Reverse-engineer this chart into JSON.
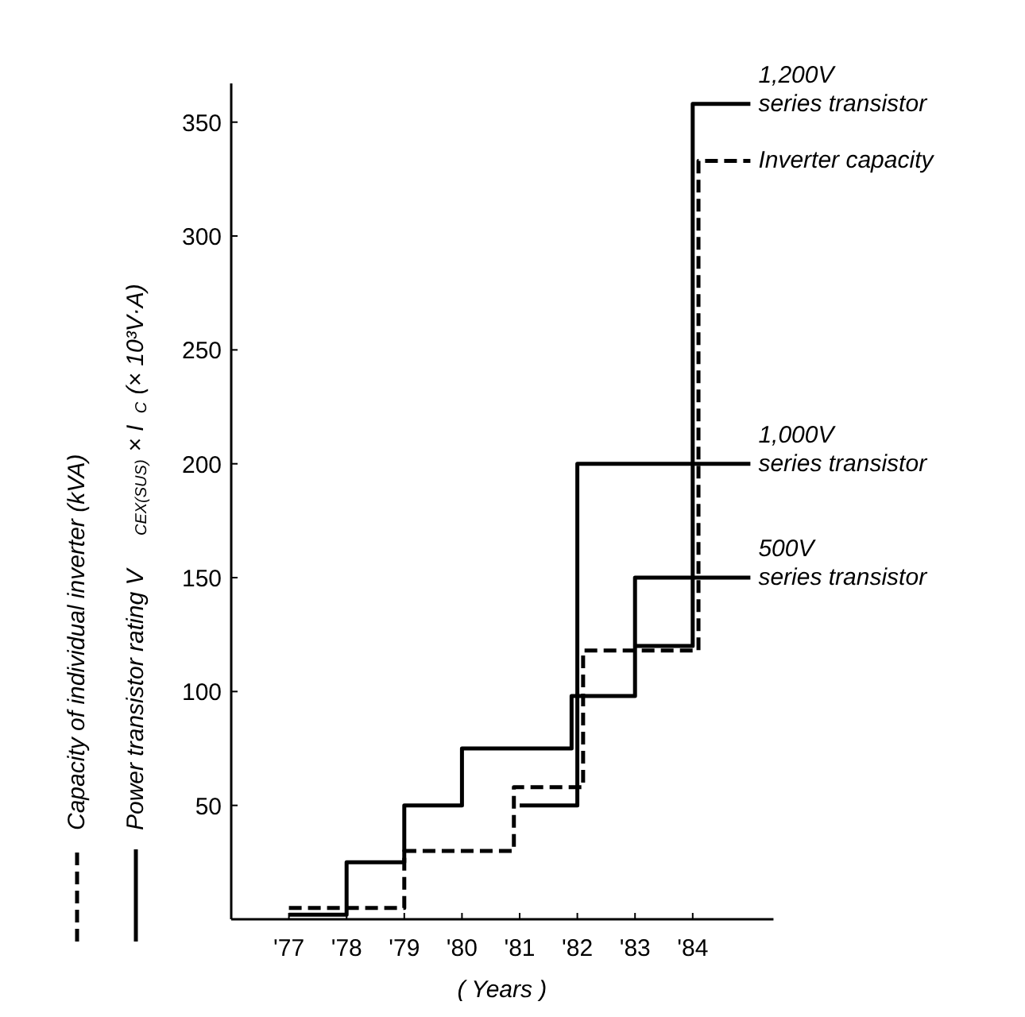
{
  "chart_data": {
    "type": "step",
    "xlabel": "( Years )",
    "ylabel": "Power transistor rating  V$_{CEX(SUS)}$ × I$_{C}$ (× 10³V·A)",
    "annotations": [
      "Capacity of individual inverter (kVA)"
    ],
    "xlim": [
      1976,
      1985.4
    ],
    "ylim": [
      0,
      367
    ],
    "xticks": [
      {
        "value": 1977,
        "label": "'77"
      },
      {
        "value": 1978,
        "label": "'78"
      },
      {
        "value": 1979,
        "label": "'79"
      },
      {
        "value": 1980,
        "label": "'80"
      },
      {
        "value": 1981,
        "label": "'81"
      },
      {
        "value": 1982,
        "label": "'82"
      },
      {
        "value": 1983,
        "label": "'83"
      },
      {
        "value": 1984,
        "label": "'84"
      }
    ],
    "yticks": [
      50,
      100,
      150,
      200,
      250,
      300,
      350
    ],
    "grid": false,
    "line_style": "solid",
    "series": [
      {
        "name": "500V\nseries transistor",
        "color": "#000000",
        "x": [
          1977,
          1978,
          1979,
          1980,
          1981.9,
          1983,
          1985
        ],
        "values": [
          2,
          25,
          50,
          75,
          98,
          150,
          150
        ]
      },
      {
        "name": "1,000V\nseries transistor",
        "color": "#000000",
        "x": [
          1981,
          1982,
          1985
        ],
        "values": [
          50,
          200,
          200
        ]
      },
      {
        "name": "1,200V\nseries transistor",
        "color": "#000000",
        "x": [
          1983,
          1984,
          1985
        ],
        "values": [
          120,
          358,
          358
        ]
      },
      {
        "name": "Inverter capacity",
        "color": "#000000",
        "line_style": "dashed",
        "x": [
          1977,
          1979,
          1980.9,
          1982.1,
          1984.1,
          1985
        ],
        "values": [
          5,
          30,
          58,
          118,
          333,
          333
        ]
      }
    ]
  }
}
